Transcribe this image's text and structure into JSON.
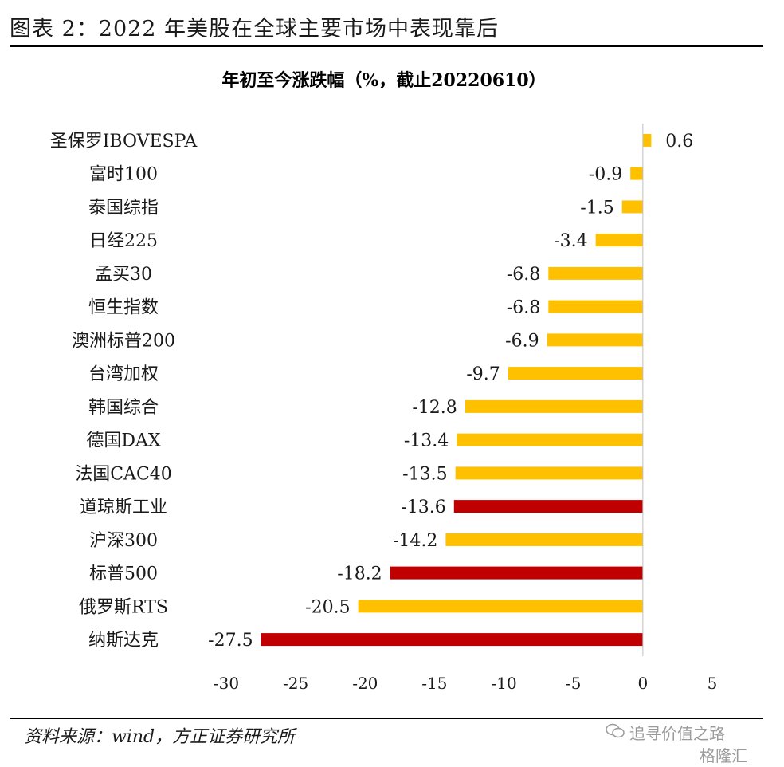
{
  "figure_title": "图表 2：2022 年美股在全球主要市场中表现靠后",
  "source_note": "资料来源：wind，方正证券研究所",
  "watermark": {
    "line1": "追寻价值之路",
    "line2": "格隆汇",
    "icon": "wechat-icon"
  },
  "colors": {
    "default_bar": "#FFC000",
    "us_bar": "#C00000"
  },
  "chart_data": {
    "type": "bar",
    "orientation": "horizontal",
    "title": "年初至今涨跌幅（%，截止20220610）",
    "categories": [
      "圣保罗IBOVESPA",
      "富时100",
      "泰国综指",
      "日经225",
      "孟买30",
      "恒生指数",
      "澳洲标普200",
      "台湾加权",
      "韩国综合",
      "德国DAX",
      "法国CAC40",
      "道琼斯工业",
      "沪深300",
      "标普500",
      "俄罗斯RTS",
      "纳斯达克"
    ],
    "values": [
      0.6,
      -0.9,
      -1.5,
      -3.4,
      -6.8,
      -6.8,
      -6.9,
      -9.7,
      -12.8,
      -13.4,
      -13.5,
      -13.6,
      -14.2,
      -18.2,
      -20.5,
      -27.5
    ],
    "value_labels": [
      "0.6",
      "-0.9",
      "-1.5",
      "-3.4",
      "-6.8",
      "-6.8",
      "-6.9",
      "-9.7",
      "-12.8",
      "-13.4",
      "-13.5",
      "-13.6",
      "-14.2",
      "-18.2",
      "-20.5",
      "-27.5"
    ],
    "highlight": [
      false,
      false,
      false,
      false,
      false,
      false,
      false,
      false,
      false,
      false,
      false,
      true,
      false,
      true,
      false,
      true
    ],
    "xlim": [
      -30,
      5
    ],
    "xticks": [
      -30,
      -25,
      -20,
      -15,
      -10,
      -5,
      0,
      5
    ],
    "xtick_labels": [
      "-30",
      "-25",
      "-20",
      "-15",
      "-10",
      "-5",
      "0",
      "5"
    ],
    "grid": false,
    "legend": "none"
  }
}
